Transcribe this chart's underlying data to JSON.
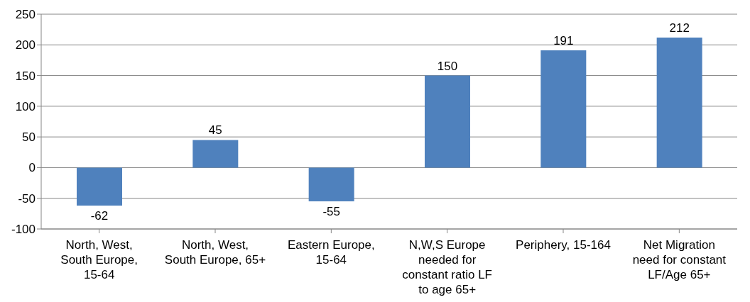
{
  "chart_data": {
    "type": "bar",
    "categories": [
      "North, West, South Europe, 15-64",
      "North, West, South Europe, 65+",
      "Eastern Europe, 15-64",
      "N,W,S Europe needed for constant ratio LF to age 65+",
      "Periphery, 15-164",
      "Net Migration need for constant LF/Age 65+"
    ],
    "values": [
      -62,
      45,
      -55,
      150,
      191,
      212
    ],
    "color": "#4f81bd",
    "ylim": [
      -100,
      250
    ],
    "yticks": [
      -100,
      -50,
      0,
      50,
      100,
      150,
      200,
      250
    ],
    "grid": "y",
    "data_labels": true
  }
}
